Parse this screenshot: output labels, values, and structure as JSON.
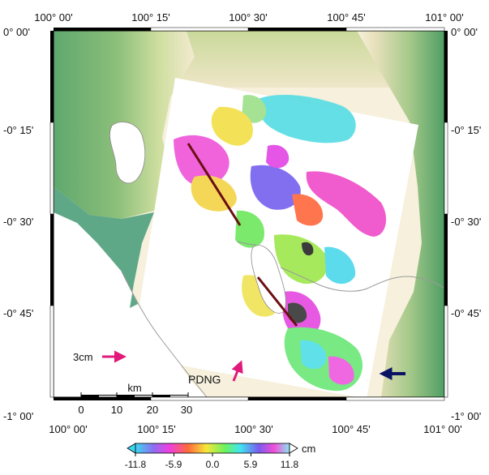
{
  "axes": {
    "top_lon_labels": [
      "100° 00'",
      "100° 15'",
      "100° 30'",
      "100° 45'",
      "101° 00'"
    ],
    "bottom_lon_labels": [
      "100° 00'",
      "100° 15'",
      "100° 30'",
      "100° 45'",
      "101° 00'"
    ],
    "left_lat_labels": [
      "0° 00'",
      "-0° 15'",
      "-0° 30'",
      "-0° 45'",
      "-1° 00'"
    ],
    "right_lat_labels": [
      "0° 00'",
      "-0° 15'",
      "-0° 30'",
      "-0° 45'",
      "-1° 00'"
    ]
  },
  "scale_bar": {
    "unit": "km",
    "ticks": [
      "0",
      "10",
      "20",
      "30"
    ]
  },
  "reference_arrow": {
    "label": "3cm"
  },
  "station": {
    "name": "PDNG"
  },
  "colorbar": {
    "unit": "cm",
    "ticks": [
      "-11.8",
      "-5.9",
      "0.0",
      "5.9",
      "11.8"
    ],
    "min": -11.8,
    "max": 11.8
  },
  "colors": {
    "arrow_magenta": "#e0197a",
    "arrow_navy": "#0a1464",
    "fault_line": "#6a0f12"
  }
}
